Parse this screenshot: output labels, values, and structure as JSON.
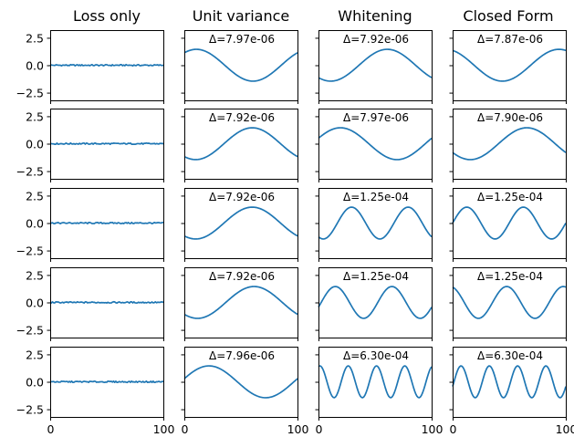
{
  "colors": {
    "line": "#1f77b4",
    "axes": "#000000",
    "background": "#ffffff"
  },
  "chart_data": {
    "type": "line",
    "grid": false,
    "shared_x_axis": true,
    "shared_y_axis": true,
    "xlim": [
      0,
      100
    ],
    "ylim": [
      -3.2,
      3.2
    ],
    "x_ticks": [
      0,
      100
    ],
    "y_ticks": [
      2.5,
      0.0,
      -2.5
    ],
    "x_tick_labels": [
      "0",
      "100"
    ],
    "y_tick_labels": [
      "2.5",
      "0.0",
      "−2.5"
    ],
    "columns": [
      "Loss only",
      "Unit variance",
      "Whitening",
      "Closed Form"
    ],
    "panels": [
      [
        {
          "delta": "",
          "curve": {
            "kind": "noise",
            "amplitude": 0.06,
            "cycles": 0,
            "phase": 0
          }
        },
        {
          "delta": "Δ=7.97e-06",
          "curve": {
            "kind": "sine",
            "amplitude": 1.45,
            "cycles": 1,
            "phase": 0.9
          }
        },
        {
          "delta": "Δ=7.92e-06",
          "curve": {
            "kind": "sine",
            "amplitude": 1.45,
            "cycles": 1,
            "phase": -2.25
          }
        },
        {
          "delta": "Δ=7.87e-06",
          "curve": {
            "kind": "sine",
            "amplitude": 1.45,
            "cycles": 1,
            "phase": 1.95
          }
        }
      ],
      [
        {
          "delta": "",
          "curve": {
            "kind": "noise",
            "amplitude": 0.06,
            "cycles": 0,
            "phase": 0
          }
        },
        {
          "delta": "Δ=7.92e-06",
          "curve": {
            "kind": "sine",
            "amplitude": 1.45,
            "cycles": 1,
            "phase": -2.2
          }
        },
        {
          "delta": "Δ=7.97e-06",
          "curve": {
            "kind": "sine",
            "amplitude": 1.45,
            "cycles": 1,
            "phase": 0.35
          }
        },
        {
          "delta": "Δ=7.90e-06",
          "curve": {
            "kind": "sine",
            "amplitude": 1.45,
            "cycles": 1,
            "phase": -2.55
          }
        }
      ],
      [
        {
          "delta": "",
          "curve": {
            "kind": "noise",
            "amplitude": 0.06,
            "cycles": 0,
            "phase": 0
          }
        },
        {
          "delta": "Δ=7.92e-06",
          "curve": {
            "kind": "sine",
            "amplitude": 1.45,
            "cycles": 1,
            "phase": -2.2
          }
        },
        {
          "delta": "Δ=1.25e-04",
          "curve": {
            "kind": "sine",
            "amplitude": 1.45,
            "cycles": 2,
            "phase": -2.1
          }
        },
        {
          "delta": "Δ=1.25e-04",
          "curve": {
            "kind": "sine",
            "amplitude": 1.45,
            "cycles": 2,
            "phase": 0
          }
        }
      ],
      [
        {
          "delta": "",
          "curve": {
            "kind": "noise",
            "amplitude": 0.06,
            "cycles": 0,
            "phase": 0
          }
        },
        {
          "delta": "Δ=7.92e-06",
          "curve": {
            "kind": "sine",
            "amplitude": 1.45,
            "cycles": 1,
            "phase": -2.3
          }
        },
        {
          "delta": "Δ=1.25e-04",
          "curve": {
            "kind": "sine",
            "amplitude": 1.45,
            "cycles": 2,
            "phase": -0.3
          }
        },
        {
          "delta": "Δ=1.25e-04",
          "curve": {
            "kind": "sine",
            "amplitude": 1.45,
            "cycles": 2,
            "phase": 1.85
          }
        }
      ],
      [
        {
          "delta": "",
          "curve": {
            "kind": "noise",
            "amplitude": 0.06,
            "cycles": 0,
            "phase": 0
          }
        },
        {
          "delta": "Δ=7.96e-06",
          "curve": {
            "kind": "sine",
            "amplitude": 1.45,
            "cycles": 1,
            "phase": 0.2
          }
        },
        {
          "delta": "Δ=6.30e-04",
          "curve": {
            "kind": "sine",
            "amplitude": 1.45,
            "cycles": 4,
            "phase": 1.25
          }
        },
        {
          "delta": "Δ=6.30e-04",
          "curve": {
            "kind": "sine",
            "amplitude": 1.45,
            "cycles": 4,
            "phase": -0.3
          }
        }
      ]
    ]
  }
}
